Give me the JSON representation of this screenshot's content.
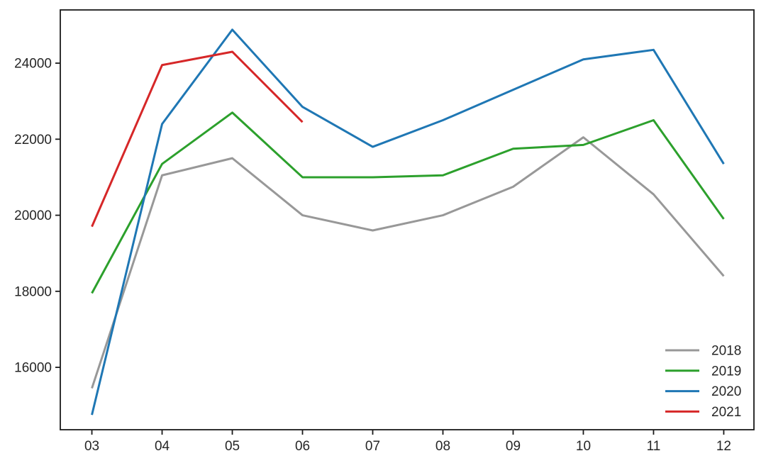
{
  "chart_data": {
    "type": "line",
    "title": "",
    "xlabel": "",
    "ylabel": "",
    "categories": [
      "03",
      "04",
      "05",
      "06",
      "07",
      "08",
      "09",
      "10",
      "11",
      "12"
    ],
    "x_numeric": [
      3,
      4,
      5,
      6,
      7,
      8,
      9,
      10,
      11,
      12
    ],
    "y_ticks": [
      16000,
      18000,
      20000,
      22000,
      24000
    ],
    "xlim": [
      2.55,
      12.43
    ],
    "ylim": [
      14360,
      25400
    ],
    "grid": false,
    "legend_position": "lower right",
    "axis_color": "#1a1a1a",
    "text_color": "#262626",
    "series": [
      {
        "name": "2018",
        "color": "#989898",
        "values": [
          15450,
          21050,
          21500,
          20000,
          19600,
          20000,
          20750,
          22050,
          20550,
          18400
        ]
      },
      {
        "name": "2019",
        "color": "#2ca02c",
        "values": [
          17950,
          21350,
          22700,
          21000,
          21000,
          21050,
          21750,
          21850,
          22500,
          19900
        ]
      },
      {
        "name": "2020",
        "color": "#1f77b4",
        "values": [
          14750,
          22400,
          24880,
          22850,
          21800,
          22500,
          23300,
          24100,
          24350,
          21350
        ]
      },
      {
        "name": "2021",
        "color": "#d62728",
        "values": [
          19700,
          23950,
          24300,
          22450,
          null,
          null,
          null,
          null,
          null,
          null
        ]
      }
    ],
    "legend_entries": [
      "2018",
      "2019",
      "2020",
      "2021"
    ]
  }
}
